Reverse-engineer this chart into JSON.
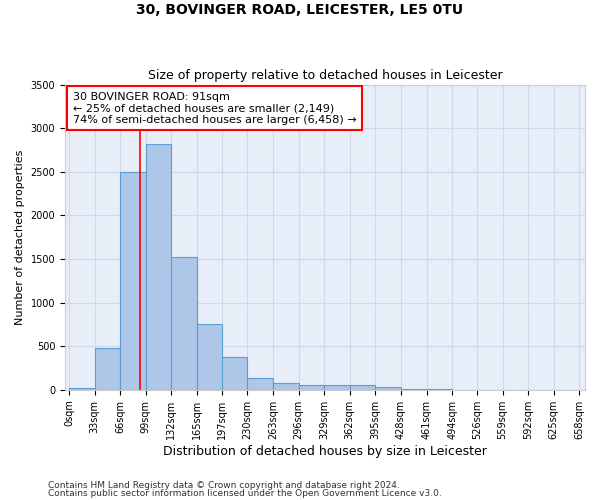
{
  "title": "30, BOVINGER ROAD, LEICESTER, LE5 0TU",
  "subtitle": "Size of property relative to detached houses in Leicester",
  "xlabel": "Distribution of detached houses by size in Leicester",
  "ylabel": "Number of detached properties",
  "footnote1": "Contains HM Land Registry data © Crown copyright and database right 2024.",
  "footnote2": "Contains public sector information licensed under the Open Government Licence v3.0.",
  "bar_left_edges": [
    0,
    33,
    66,
    99,
    132,
    165,
    197,
    230,
    263,
    296,
    329,
    362,
    395,
    428,
    461,
    494,
    526,
    559,
    592,
    625
  ],
  "bar_widths": [
    33,
    33,
    33,
    33,
    33,
    32,
    33,
    33,
    33,
    33,
    33,
    33,
    33,
    33,
    33,
    32,
    33,
    33,
    33,
    33
  ],
  "bar_heights": [
    20,
    480,
    2500,
    2820,
    1520,
    750,
    380,
    140,
    80,
    55,
    55,
    55,
    30,
    10,
    5,
    0,
    0,
    0,
    0,
    0
  ],
  "bar_color": "#aec6e8",
  "bar_edgecolor": "#5a9fd4",
  "bar_linewidth": 0.8,
  "xtick_labels": [
    "0sqm",
    "33sqm",
    "66sqm",
    "99sqm",
    "132sqm",
    "165sqm",
    "197sqm",
    "230sqm",
    "263sqm",
    "296sqm",
    "329sqm",
    "362sqm",
    "395sqm",
    "428sqm",
    "461sqm",
    "494sqm",
    "526sqm",
    "559sqm",
    "592sqm",
    "625sqm",
    "658sqm"
  ],
  "xtick_positions": [
    0,
    33,
    66,
    99,
    132,
    165,
    197,
    230,
    263,
    296,
    329,
    362,
    395,
    428,
    461,
    494,
    526,
    559,
    592,
    625,
    658
  ],
  "ytick_positions": [
    0,
    500,
    1000,
    1500,
    2000,
    2500,
    3000,
    3500
  ],
  "ylim": [
    0,
    3500
  ],
  "xlim": [
    -5,
    665
  ],
  "grid_color": "#d0d8e8",
  "bg_color": "#e8eef8",
  "vline_x": 91,
  "vline_color": "red",
  "vline_linewidth": 1.2,
  "annotation_text": "30 BOVINGER ROAD: 91sqm\n← 25% of detached houses are smaller (2,149)\n74% of semi-detached houses are larger (6,458) →",
  "annotation_box_color": "white",
  "annotation_box_edgecolor": "red",
  "title_fontsize": 10,
  "subtitle_fontsize": 9,
  "xlabel_fontsize": 9,
  "ylabel_fontsize": 8,
  "tick_fontsize": 7,
  "annotation_fontsize": 8,
  "footnote_fontsize": 6.5
}
